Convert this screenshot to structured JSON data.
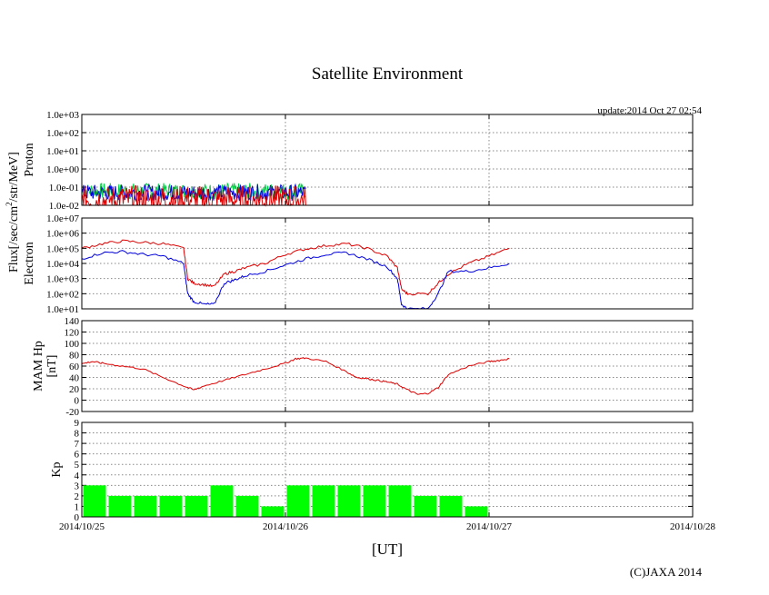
{
  "title": "Satellite Environment",
  "update_text": "update:2014 Oct 27 02:54",
  "x_axis_label": "[UT]",
  "copyright": "(C)JAXA 2014",
  "flux_label_prefix": "Flux[/sec/cm",
  "flux_label_sup": "2",
  "flux_label_suffix": "/str/MeV]",
  "x_tick_labels": [
    "2014/10/25",
    "2014/10/26",
    "2014/10/27",
    "2014/10/28"
  ],
  "chart_data": [
    {
      "type": "line",
      "ylabel": "Proton",
      "y_scale": "log",
      "ylim": [
        0.01,
        1000
      ],
      "y_tick_labels": [
        "1.0e-02",
        "1.0e-01",
        "1.0e+00",
        "1.0e+01",
        "1.0e+02",
        "1.0e+03"
      ],
      "x_range_days": [
        0,
        3
      ],
      "data_end_day": 1.1,
      "colors": {
        "green": "#00cc44",
        "blue": "#0000dd",
        "red": "#dd0000"
      },
      "series": [
        {
          "color": "green",
          "typical_value": 0.06
        },
        {
          "color": "blue",
          "typical_value": 0.05
        },
        {
          "color": "red",
          "typical_value": 0.02
        }
      ]
    },
    {
      "type": "line",
      "ylabel": "Electron",
      "y_scale": "log",
      "ylim": [
        10,
        10000000
      ],
      "y_tick_labels": [
        "1.0e+01",
        "1.0e+02",
        "1.0e+03",
        "1.0e+04",
        "1.0e+05",
        "1.0e+06",
        "1.0e+07"
      ],
      "x_range_days": [
        0,
        3
      ],
      "series": [
        {
          "color": "#dd0000",
          "x": [
            0.0,
            0.1,
            0.2,
            0.3,
            0.4,
            0.5,
            0.52,
            0.55,
            0.6,
            0.65,
            0.7,
            0.75,
            0.8,
            0.9,
            1.0,
            1.1,
            1.2,
            1.3,
            1.4,
            1.5,
            1.55,
            1.57,
            1.6,
            1.7,
            1.75,
            1.8,
            1.9,
            2.0,
            2.1
          ],
          "y": [
            100000,
            200000,
            300000,
            250000,
            200000,
            100000,
            1000,
            500,
            400,
            300,
            2000,
            3000,
            5000,
            10000,
            40000,
            90000,
            150000,
            200000,
            100000,
            30000,
            5000,
            200,
            100,
            100,
            500,
            2000,
            10000,
            30000,
            100000
          ]
        },
        {
          "color": "#0000dd",
          "x": [
            0.0,
            0.1,
            0.2,
            0.3,
            0.4,
            0.5,
            0.52,
            0.55,
            0.6,
            0.65,
            0.7,
            0.75,
            0.8,
            0.9,
            1.0,
            1.1,
            1.2,
            1.3,
            1.4,
            1.5,
            1.55,
            1.57,
            1.6,
            1.7,
            1.75,
            1.8,
            1.9,
            2.0,
            2.1
          ],
          "y": [
            20000,
            50000,
            60000,
            40000,
            30000,
            10000,
            100,
            30,
            20,
            20,
            500,
            800,
            1500,
            3000,
            8000,
            20000,
            40000,
            50000,
            20000,
            6000,
            1000,
            20,
            10,
            10,
            100,
            3000,
            3000,
            5000,
            10000
          ]
        }
      ]
    },
    {
      "type": "line",
      "ylabel": "MAM Hp\n[nT]",
      "ylim": [
        -20,
        140
      ],
      "y_ticks": [
        -20,
        0,
        20,
        40,
        60,
        80,
        100,
        120,
        140
      ],
      "x_range_days": [
        0,
        3
      ],
      "series": [
        {
          "color": "#dd0000",
          "x": [
            0.0,
            0.05,
            0.1,
            0.2,
            0.3,
            0.4,
            0.5,
            0.55,
            0.6,
            0.7,
            0.8,
            0.9,
            1.0,
            1.05,
            1.1,
            1.2,
            1.3,
            1.35,
            1.4,
            1.45,
            1.5,
            1.55,
            1.6,
            1.65,
            1.7,
            1.75,
            1.8,
            1.9,
            2.0,
            2.05,
            2.1
          ],
          "y": [
            64,
            68,
            65,
            60,
            55,
            40,
            25,
            18,
            25,
            35,
            45,
            55,
            65,
            73,
            74,
            68,
            50,
            40,
            38,
            35,
            32,
            28,
            18,
            10,
            12,
            22,
            45,
            60,
            68,
            70,
            73
          ]
        }
      ]
    },
    {
      "type": "bar",
      "ylabel": "Kp",
      "ylim": [
        0,
        9
      ],
      "y_ticks": [
        0,
        1,
        2,
        3,
        4,
        5,
        6,
        7,
        8,
        9
      ],
      "x_range_days": [
        0,
        3
      ],
      "bar_width_days": 0.125,
      "bar_color": "#00ff00",
      "values": [
        3,
        2,
        2,
        2,
        2,
        3,
        2,
        1,
        3,
        3,
        3,
        3,
        3,
        2,
        2,
        1
      ]
    }
  ]
}
